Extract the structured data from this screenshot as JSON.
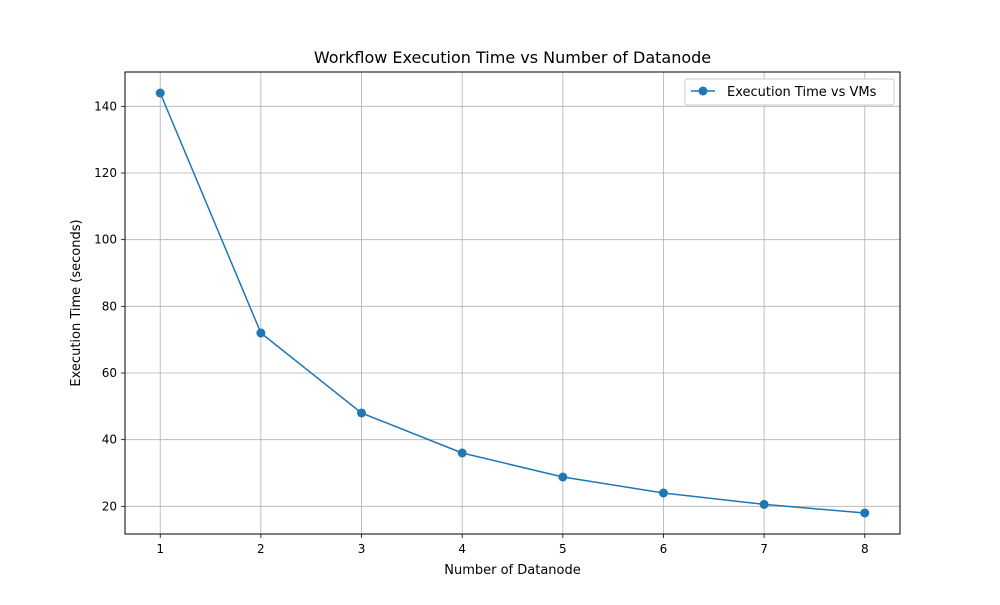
{
  "chart_data": {
    "type": "line",
    "title": "Workflow Execution Time vs Number of Datanode",
    "xlabel": "Number of Datanode",
    "ylabel": "Execution Time (seconds)",
    "x": [
      1,
      2,
      3,
      4,
      5,
      6,
      7,
      8
    ],
    "series": [
      {
        "name": "Execution Time vs VMs",
        "values": [
          144,
          72,
          48,
          36,
          28.8,
          24,
          20.57,
          18
        ],
        "color": "#1f77b4",
        "marker": "circle"
      }
    ],
    "xticks": [
      1,
      2,
      3,
      4,
      5,
      6,
      7,
      8
    ],
    "yticks": [
      20,
      40,
      60,
      80,
      100,
      120,
      140
    ],
    "xlim": [
      0.65,
      8.35
    ],
    "ylim": [
      11.7,
      150.3
    ],
    "grid": true,
    "legend_position": "top-right"
  }
}
